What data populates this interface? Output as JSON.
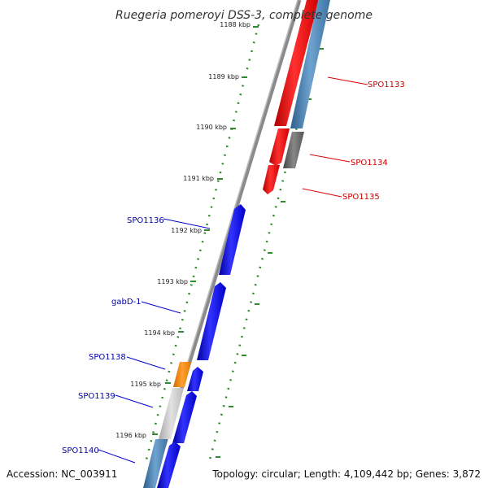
{
  "title": "Ruegeria pomeroyi DSS-3, complete genome",
  "accession_text": "Accession: NC_003911",
  "topology_text": "Topology: circular; Length: 4,109,442 bp; Genes: 3,872",
  "ticks": [
    "1188 kbp",
    "1189 kbp",
    "1190 kbp",
    "1191 kbp",
    "1192 kbp",
    "1193 kbp",
    "1194 kbp",
    "1195 kbp",
    "1196 kbp"
  ],
  "genes_forward": [
    {
      "label": "SPO1133",
      "color": "#cc0000"
    },
    {
      "label": "SPO1134",
      "color": "#cc0000"
    },
    {
      "label": "SPO1135",
      "color": "#cc0000"
    }
  ],
  "genes_reverse": [
    {
      "label": "SPO1136",
      "color": "#0000aa"
    },
    {
      "label": "gabD-1",
      "color": "#0000aa"
    },
    {
      "label": "SPO1138",
      "color": "#0000aa"
    },
    {
      "label": "SPO1139",
      "color": "#0000aa"
    },
    {
      "label": "SPO1140",
      "color": "#0000aa"
    }
  ],
  "colors": {
    "forward_cds": "#ff0000",
    "reverse_cds": "#0000ee",
    "orange_feature": "#ff8c00",
    "gray_feature": "#666666",
    "light_gray_feature": "#c8c8c8",
    "steel_blue_feature": "#4a86b8",
    "backbone": "#888888",
    "tick_dots": "#2e8b2e"
  }
}
